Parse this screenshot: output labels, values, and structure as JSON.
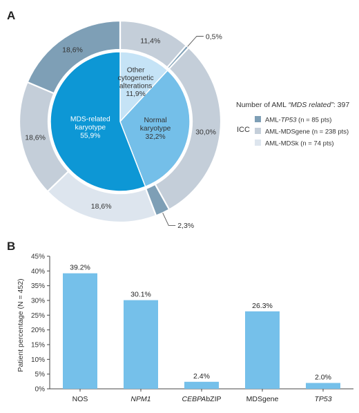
{
  "colors": {
    "inner_mds": "#0d97d5",
    "inner_normal": "#74bfe9",
    "inner_other": "#c5e3f6",
    "ring_tp53": "#7e9fb6",
    "ring_mdsgene": "#c4ced9",
    "ring_mdsk": "#dde5ee",
    "bar": "#75c0ea",
    "axis": "#444444",
    "label_dark": "#333333"
  },
  "panel_a": {
    "letter": "A",
    "legend": {
      "title_prefix": "Number of AML ",
      "title_italic": "“MDS related”",
      "title_suffix": ": 397",
      "group_label": "ICC",
      "items": [
        {
          "prefix": "AML-",
          "italic": "TP53",
          "suffix": " (n = 85 pts)",
          "color": "#7e9fb6"
        },
        {
          "prefix": "AML-MDSgene",
          "italic": "",
          "suffix": " (n = 238 pts)",
          "color": "#c4ced9"
        },
        {
          "prefix": "AML-MDSk",
          "italic": "",
          "suffix": " (n = 74 pts)",
          "color": "#dde5ee"
        }
      ]
    }
  },
  "panel_b": {
    "letter": "B"
  },
  "chart_data": [
    {
      "type": "pie",
      "subtype": "nested-donut",
      "inner": [
        {
          "label_lines": [
            "Other",
            "cytogenetic",
            "alterations",
            "11,9%"
          ],
          "value": 11.9,
          "color": "#c5e3f6"
        },
        {
          "label_lines": [
            "Normal",
            "karyotype",
            "32,2%"
          ],
          "value": 32.2,
          "color": "#74bfe9"
        },
        {
          "label_lines": [
            "MDS-related",
            "karyotype",
            "55,9%"
          ],
          "value": 55.9,
          "color": "#0d97d5"
        }
      ],
      "outer": [
        {
          "label": "11,4%",
          "value": 11.4,
          "category": "AML-MDSgene",
          "color": "#c4ced9"
        },
        {
          "label": "0,5%",
          "value": 0.5,
          "category": "AML-TP53",
          "color": "#7e9fb6"
        },
        {
          "label": "30,0%",
          "value": 30.0,
          "category": "AML-MDSgene",
          "color": "#c4ced9"
        },
        {
          "label": "2,3%",
          "value": 2.3,
          "category": "AML-TP53",
          "color": "#7e9fb6"
        },
        {
          "label": "18,6%",
          "value": 18.6,
          "category": "AML-MDSk",
          "color": "#dde5ee"
        },
        {
          "label": "18,6%",
          "value": 18.6,
          "category": "AML-MDSgene",
          "color": "#c4ced9"
        },
        {
          "label": "18,6%",
          "value": 18.6,
          "category": "AML-TP53",
          "color": "#7e9fb6"
        }
      ]
    },
    {
      "type": "bar",
      "categories": [
        {
          "prefix": "NOS",
          "italic": ""
        },
        {
          "prefix": "",
          "italic": "NPM1"
        },
        {
          "prefix": "",
          "italic": "CEBPA",
          "suffix": "bZIP"
        },
        {
          "prefix": "MDSgene",
          "italic": ""
        },
        {
          "prefix": "",
          "italic": "TP53"
        }
      ],
      "values": [
        39.2,
        30.1,
        2.4,
        26.3,
        2.0
      ],
      "value_labels": [
        "39.2%",
        "30.1%",
        "2.4%",
        "26.3%",
        "2.0%"
      ],
      "ylabel": "Patient percentage (N = 452)",
      "ylim": [
        0,
        45
      ],
      "yticks": [
        "0%",
        "5%",
        "10%",
        "15%",
        "20%",
        "25%",
        "30%",
        "35%",
        "40%",
        "45%"
      ],
      "bar_color": "#75c0ea"
    }
  ]
}
